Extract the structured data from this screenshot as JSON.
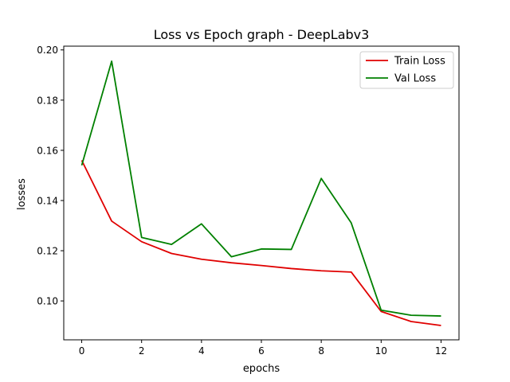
{
  "chart_data": {
    "type": "line",
    "title": "Loss vs Epoch graph - DeepLabv3",
    "xlabel": "epochs",
    "ylabel": "losses",
    "xlim": [
      -0.6,
      12.6
    ],
    "ylim": [
      0.0845,
      0.2015
    ],
    "xticks": [
      0,
      2,
      4,
      6,
      8,
      10,
      12
    ],
    "yticks": [
      0.1,
      0.12,
      0.14,
      0.16,
      0.18,
      0.2
    ],
    "xtick_labels": [
      "0",
      "2",
      "4",
      "6",
      "8",
      "10",
      "12"
    ],
    "ytick_labels": [
      "0.10",
      "0.12",
      "0.14",
      "0.16",
      "0.18",
      "0.20"
    ],
    "grid": false,
    "legend_position": "top-right",
    "x": [
      0,
      1,
      2,
      3,
      4,
      5,
      6,
      7,
      8,
      9,
      10,
      11,
      12
    ],
    "series": [
      {
        "name": "Train Loss",
        "color": "#e00000",
        "values": [
          0.156,
          0.1318,
          0.1236,
          0.1189,
          0.1166,
          0.1152,
          0.1141,
          0.1129,
          0.112,
          0.1115,
          0.0958,
          0.0918,
          0.0902
        ]
      },
      {
        "name": "Val Loss",
        "color": "#008000",
        "values": [
          0.154,
          0.1955,
          0.1253,
          0.1225,
          0.1307,
          0.1176,
          0.1207,
          0.1205,
          0.1488,
          0.1311,
          0.0963,
          0.0943,
          0.094
        ]
      }
    ]
  }
}
